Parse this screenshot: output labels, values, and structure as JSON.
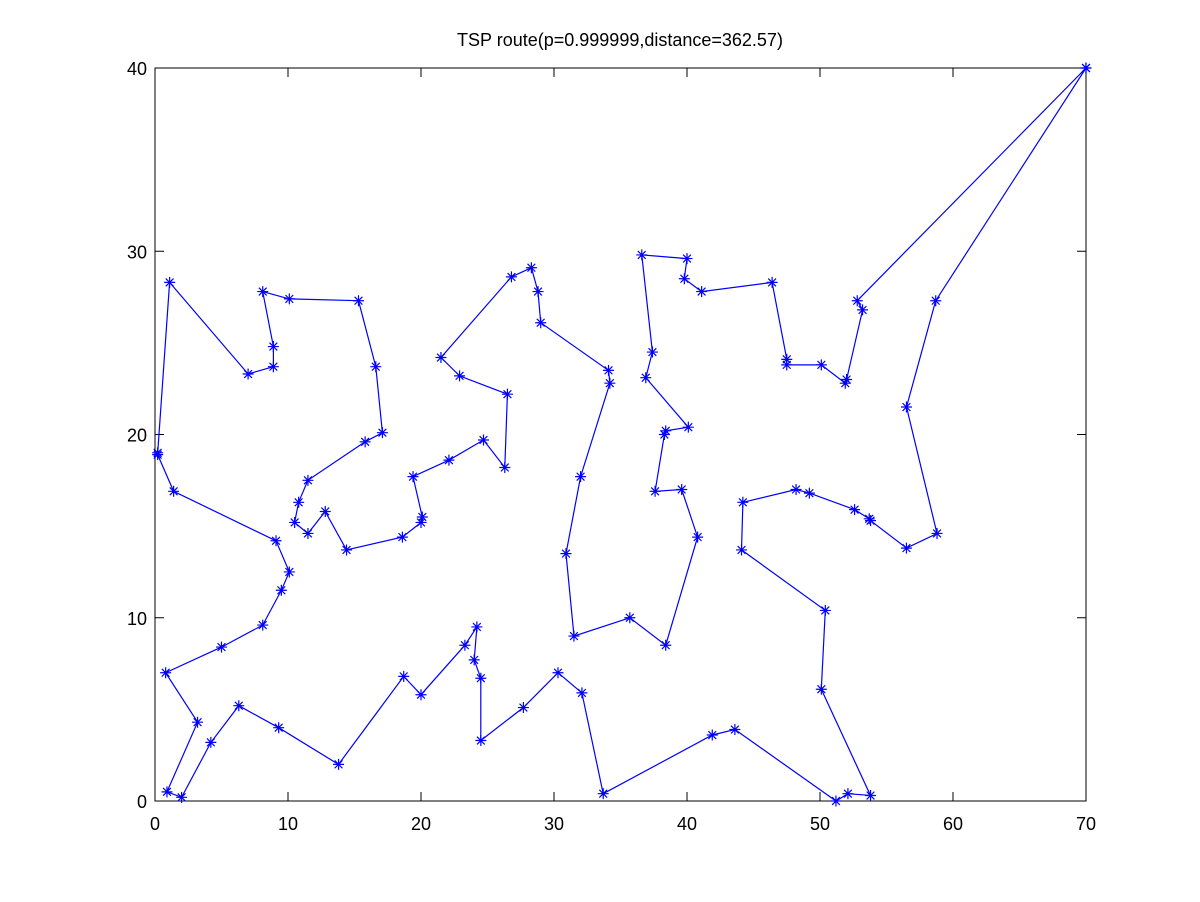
{
  "chart_data": {
    "type": "line",
    "title": "TSP route(p=0.999999,distance=362.57)",
    "xlabel": "",
    "ylabel": "",
    "xlim": [
      0,
      70
    ],
    "ylim": [
      0,
      40
    ],
    "xticks": [
      0,
      10,
      20,
      30,
      40,
      50,
      60,
      70
    ],
    "yticks": [
      0,
      10,
      20,
      30,
      40
    ],
    "xtick_labels": [
      "0",
      "10",
      "20",
      "30",
      "40",
      "50",
      "60",
      "70"
    ],
    "ytick_labels": [
      "0",
      "10",
      "20",
      "30",
      "40"
    ],
    "grid": false,
    "legend": null,
    "marker": "asterisk",
    "color": "#0000ff",
    "series": [
      {
        "x": [
          70,
          52.8,
          53.2,
          52,
          51.9,
          50.1,
          47.5,
          47.5,
          46.4,
          41.1,
          39.8,
          40,
          36.6,
          37.4,
          36.9,
          40.1,
          38.4,
          38.3,
          37.6,
          39.6,
          40.8,
          38.4,
          35.7,
          31.5,
          30.9,
          32,
          34.2,
          34.1,
          29,
          28.8,
          28.3,
          26.8,
          21.5,
          22.9,
          26.5,
          26.3,
          24.7,
          22.1,
          19.4,
          20.1,
          20,
          18.6,
          14.4,
          12.8,
          11.5,
          10.5,
          10.8,
          11.5,
          15.8,
          17.1,
          16.6,
          15.3,
          10.1,
          8.1,
          8.9,
          8.9,
          7,
          1.1,
          0.2,
          0.2,
          1.4,
          9.1,
          10.1,
          9.5,
          8.1,
          5,
          0.8,
          3.2,
          0.9,
          2,
          4.2,
          6.3,
          9.3,
          13.8,
          18.7,
          20,
          23.3,
          24.2,
          24,
          24.5,
          24.5,
          27.7,
          30.3,
          32.1,
          33.7,
          41.9,
          43.6,
          51.2,
          52.1,
          53.8,
          50.1,
          50.4,
          44.1,
          44.2,
          48.2,
          49.2,
          52.6,
          53.7,
          53.8,
          56.5,
          58.8,
          56.5,
          58.7,
          70
        ],
        "y": [
          40,
          27.3,
          26.8,
          23,
          22.8,
          23.8,
          23.8,
          24.1,
          28.3,
          27.8,
          28.5,
          29.6,
          29.8,
          24.5,
          23.1,
          20.4,
          20.2,
          20,
          16.9,
          17,
          14.4,
          8.5,
          10,
          9,
          13.5,
          17.7,
          22.8,
          23.5,
          26.1,
          27.8,
          29.1,
          28.6,
          24.2,
          23.2,
          22.2,
          18.2,
          19.7,
          18.6,
          17.7,
          15.5,
          15.2,
          14.4,
          13.7,
          15.8,
          14.6,
          15.2,
          16.3,
          17.5,
          19.6,
          20.1,
          23.7,
          27.3,
          27.4,
          27.8,
          24.8,
          23.7,
          23.3,
          28.3,
          19,
          18.9,
          16.9,
          14.2,
          12.5,
          11.5,
          9.6,
          8.4,
          7,
          4.3,
          0.5,
          0.2,
          3.2,
          5.2,
          4,
          2,
          6.8,
          5.8,
          8.5,
          9.5,
          7.7,
          6.7,
          3.3,
          5.1,
          7,
          5.9,
          0.4,
          3.6,
          3.9,
          0,
          0.4,
          0.3,
          6.1,
          10.4,
          13.7,
          16.3,
          17,
          16.8,
          15.9,
          15.4,
          15.3,
          13.8,
          14.6,
          21.5,
          27.3,
          40
        ]
      }
    ]
  }
}
